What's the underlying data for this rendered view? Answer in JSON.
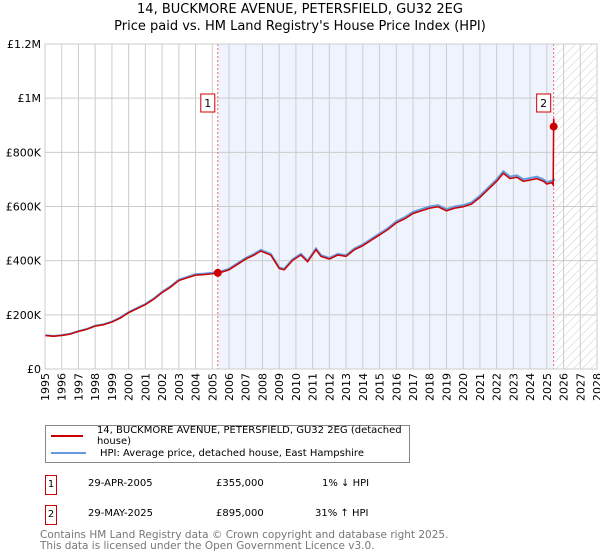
{
  "chart_data": {
    "type": "line",
    "title": "14, BUCKMORE AVENUE, PETERSFIELD, GU32 2EG",
    "subtitle": "Price paid vs. HM Land Registry's House Price Index (HPI)",
    "xlim": [
      1995,
      2028
    ],
    "ylim": [
      0,
      1200000
    ],
    "x_ticks": [
      "1995",
      "1996",
      "1997",
      "1998",
      "1999",
      "2000",
      "2001",
      "2002",
      "2003",
      "2004",
      "2005",
      "2006",
      "2007",
      "2008",
      "2009",
      "2010",
      "2011",
      "2012",
      "2013",
      "2014",
      "2015",
      "2016",
      "2017",
      "2018",
      "2019",
      "2020",
      "2021",
      "2022",
      "2023",
      "2024",
      "2025",
      "2026",
      "2027",
      "2028"
    ],
    "y_ticks": [
      {
        "v": 0,
        "label": "£0"
      },
      {
        "v": 200000,
        "label": "£200K"
      },
      {
        "v": 400000,
        "label": "£400K"
      },
      {
        "v": 600000,
        "label": "£600K"
      },
      {
        "v": 800000,
        "label": "£800K"
      },
      {
        "v": 1000000,
        "label": "£1M"
      },
      {
        "v": 1200000,
        "label": "£1.2M"
      }
    ],
    "grid": true,
    "hpi": {
      "name": "HPI: Average price, detached house, East Hampshire",
      "color": "#6699dd",
      "x": [
        1995,
        1995.5,
        1996,
        1996.5,
        1997,
        1997.5,
        1998,
        1998.5,
        1999,
        1999.5,
        2000,
        2000.5,
        2001,
        2001.5,
        2002,
        2002.5,
        2003,
        2003.5,
        2004,
        2004.5,
        2005,
        2005.5,
        2006,
        2006.5,
        2007,
        2007.5,
        2007.9,
        2008.5,
        2009,
        2009.3,
        2009.8,
        2010.3,
        2010.7,
        2011.2,
        2011.5,
        2012,
        2012.5,
        2013,
        2013.5,
        2014,
        2014.5,
        2015,
        2015.5,
        2016,
        2016.5,
        2017,
        2017.5,
        2018,
        2018.5,
        2019,
        2019.5,
        2020,
        2020.5,
        2021,
        2021.5,
        2022,
        2022.4,
        2022.8,
        2023.2,
        2023.6,
        2024,
        2024.4,
        2024.8,
        2025,
        2025.3,
        2025.5
      ],
      "y": [
        125000,
        122000,
        125000,
        130000,
        140000,
        148000,
        160000,
        165000,
        175000,
        190000,
        210000,
        225000,
        240000,
        260000,
        285000,
        305000,
        330000,
        340000,
        350000,
        352000,
        355000,
        360000,
        370000,
        390000,
        410000,
        425000,
        440000,
        425000,
        375000,
        370000,
        405000,
        425000,
        400000,
        445000,
        420000,
        410000,
        425000,
        420000,
        445000,
        460000,
        480000,
        500000,
        520000,
        545000,
        560000,
        580000,
        590000,
        600000,
        605000,
        590000,
        600000,
        605000,
        615000,
        640000,
        670000,
        700000,
        730000,
        710000,
        715000,
        700000,
        705000,
        710000,
        700000,
        690000,
        695000,
        700000
      ]
    },
    "price": {
      "name": "14, BUCKMORE AVENUE, PETERSFIELD, GU32 2EG (detached house)",
      "color": "#cc0000"
    },
    "sales": [
      {
        "n": "1",
        "x": 2005.33,
        "date": "29-APR-2005",
        "price": 355000,
        "price_label": "£355,000",
        "hpi": "1% ↓ HPI"
      },
      {
        "n": "2",
        "x": 2025.41,
        "date": "29-MAY-2025",
        "price": 895000,
        "price_label": "£895,000",
        "hpi": "31% ↑ HPI"
      }
    ],
    "forecast_from": 2025.5
  },
  "footer": {
    "line1": "Contains HM Land Registry data © Crown copyright and database right 2025.",
    "line2": "This data is licensed under the Open Government Licence v3.0."
  }
}
